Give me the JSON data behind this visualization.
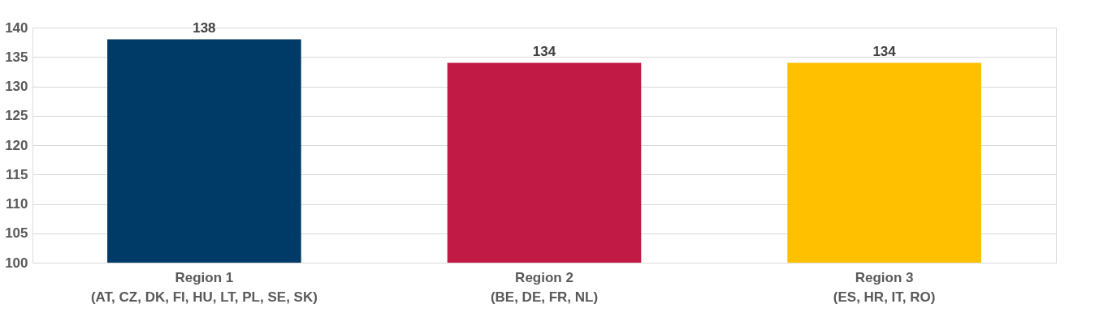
{
  "chart_data": {
    "type": "bar",
    "categories": [
      "Region 1\n(AT, CZ, DK, FI, HU, LT, PL, SE, SK)",
      "Region 2\n(BE, DE, FR, NL)",
      "Region 3\n(ES, HR, IT, RO)"
    ],
    "values": [
      138,
      134,
      134
    ],
    "colors": [
      "#003a66",
      "#c01a45",
      "#ffc000"
    ],
    "ylim": [
      100,
      140
    ],
    "yticks": [
      100,
      105,
      110,
      115,
      120,
      125,
      130,
      135,
      140
    ],
    "grid": "y",
    "data_labels": true,
    "legend": false
  }
}
